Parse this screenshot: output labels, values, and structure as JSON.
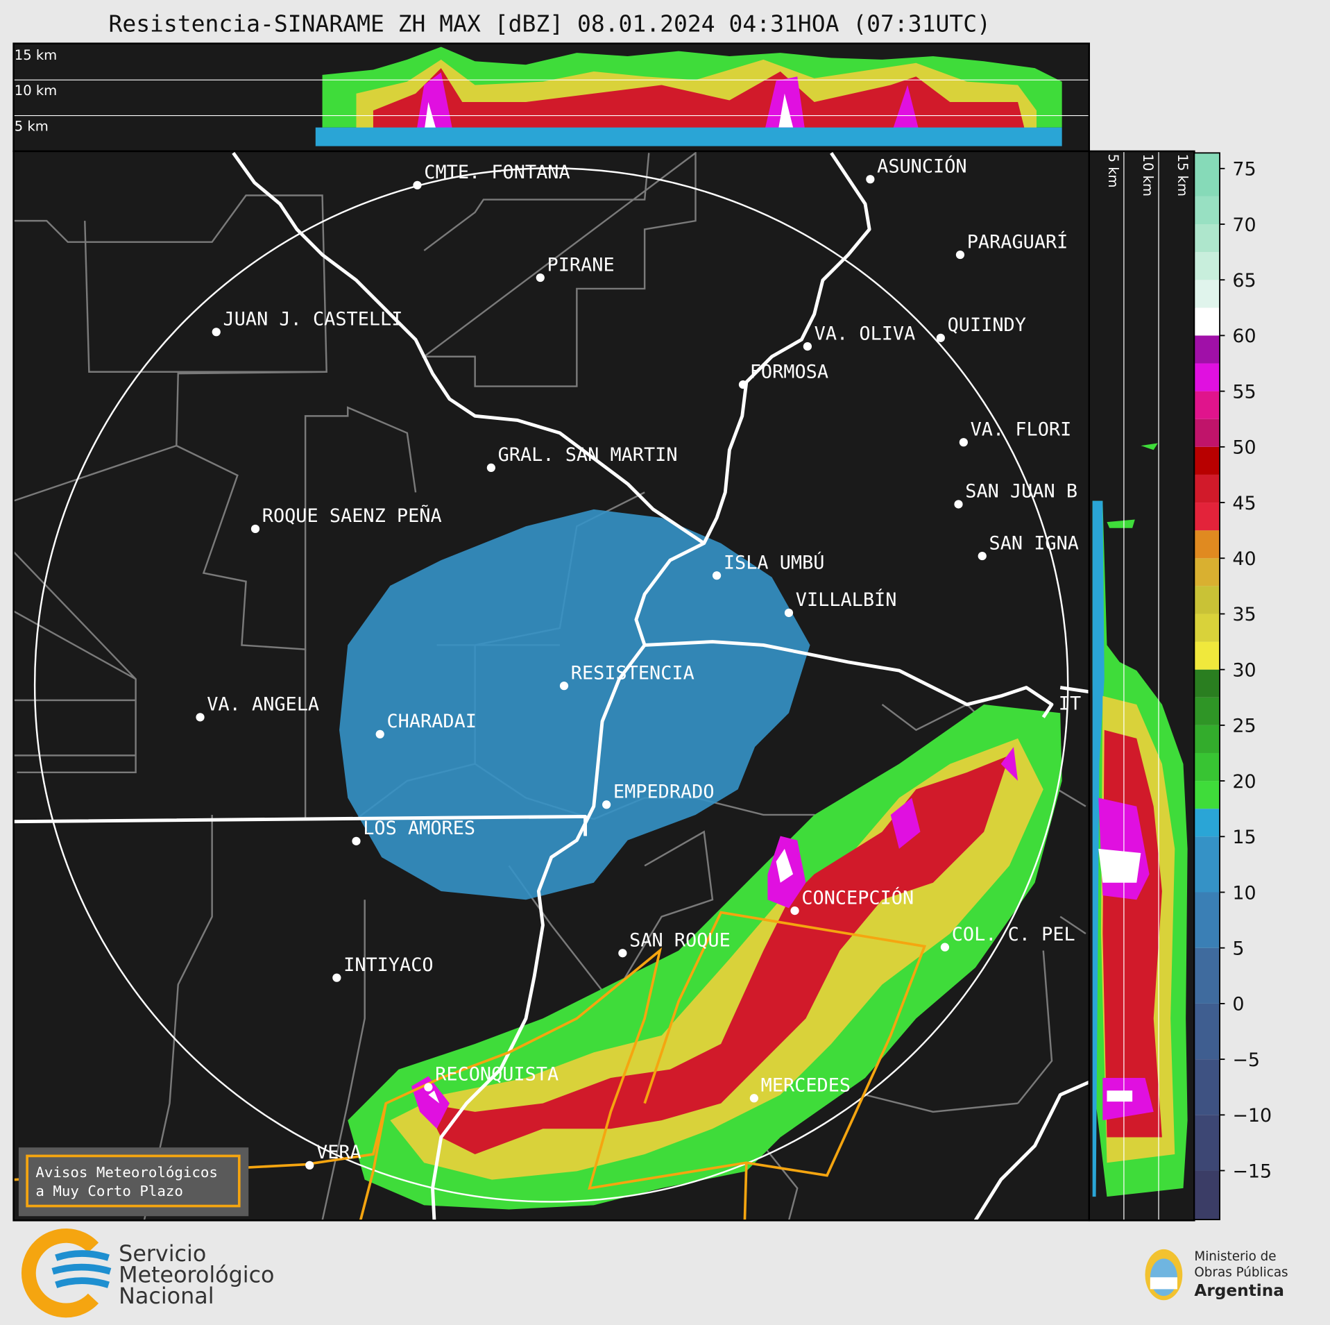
{
  "header": {
    "title": "Resistencia-SINARAME ZH MAX [dBZ] 08.01.2024 04:31HOA (07:31UTC)"
  },
  "top_panel": {
    "height_labels": [
      "15 km",
      "10 km",
      "5 km"
    ]
  },
  "side_panel": {
    "height_labels": [
      "5 km",
      "10 km",
      "15 km"
    ]
  },
  "map": {
    "places": [
      {
        "label": "CMTE. FONTANA"
      },
      {
        "label": "PIRANE"
      },
      {
        "label": "JUAN J. CASTELLI"
      },
      {
        "label": "ASUNCIÓN"
      },
      {
        "label": "PARAGUARÍ"
      },
      {
        "label": "QUIINDY"
      },
      {
        "label": "VA. OLIVA"
      },
      {
        "label": "FORMOSA"
      },
      {
        "label": "VA. FLORI"
      },
      {
        "label": "GRAL. SAN MARTIN"
      },
      {
        "label": "SAN JUAN B"
      },
      {
        "label": "ROQUE SAENZ PEÑA"
      },
      {
        "label": "SAN IGNA"
      },
      {
        "label": "ISLA UMBÚ"
      },
      {
        "label": "VILLALBÍN"
      },
      {
        "label": "RESISTENCIA"
      },
      {
        "label": "VA. ANGELA"
      },
      {
        "label": "CHARADAI"
      },
      {
        "label": "IT"
      },
      {
        "label": "EMPEDRADO"
      },
      {
        "label": "LOS AMORES"
      },
      {
        "label": "CONCEPCIÓN"
      },
      {
        "label": "COL. C. PEL"
      },
      {
        "label": "SAN ROQUE"
      },
      {
        "label": "INTIYACO"
      },
      {
        "label": "RECONQUISTA"
      },
      {
        "label": "MERCEDES"
      },
      {
        "label": "VERA"
      }
    ]
  },
  "colorbar": {
    "lim": [
      -19.4,
      76.4
    ],
    "ticks": [
      75,
      70,
      65,
      60,
      55,
      50,
      45,
      40,
      35,
      30,
      25,
      20,
      15,
      10,
      5,
      0,
      {
        "value": -5,
        "label": "−5"
      },
      {
        "value": -10,
        "label": "−10"
      },
      {
        "value": -15,
        "label": "−15"
      }
    ],
    "bands": [
      {
        "from": -19.4,
        "color": "#3b3d66"
      },
      {
        "from": -15,
        "color": "#3d4774"
      },
      {
        "from": -10,
        "color": "#3e5282"
      },
      {
        "from": -5,
        "color": "#3f5e90"
      },
      {
        "from": 0,
        "color": "#3f6b9e"
      },
      {
        "from": 5,
        "color": "#3a7fb5"
      },
      {
        "from": 10,
        "color": "#3592c6"
      },
      {
        "from": 15,
        "color": "#2aa5d6"
      },
      {
        "from": 17.5,
        "color": "#3fdc3a"
      },
      {
        "from": 20,
        "color": "#38c433"
      },
      {
        "from": 22.5,
        "color": "#33ac2c"
      },
      {
        "from": 25,
        "color": "#2f9526"
      },
      {
        "from": 27.5,
        "color": "#2a7e20"
      },
      {
        "from": 30,
        "color": "#f0e83c"
      },
      {
        "from": 32.5,
        "color": "#d9d23a"
      },
      {
        "from": 35,
        "color": "#c9c236"
      },
      {
        "from": 37.5,
        "color": "#d9b030"
      },
      {
        "from": 40,
        "color": "#e08a20"
      },
      {
        "from": 42.5,
        "color": "#e3233a"
      },
      {
        "from": 45,
        "color": "#d11a2a"
      },
      {
        "from": 47.5,
        "color": "#b80000"
      },
      {
        "from": 50,
        "color": "#c0146a"
      },
      {
        "from": 52.5,
        "color": "#e0148c"
      },
      {
        "from": 55,
        "color": "#e010e0"
      },
      {
        "from": 57.5,
        "color": "#a010a8"
      },
      {
        "from": 60,
        "color": "#ffffff"
      },
      {
        "from": 62.5,
        "color": "#e0f4ec"
      },
      {
        "from": 65,
        "color": "#c8eedc"
      },
      {
        "from": 67.5,
        "color": "#aee6cc"
      },
      {
        "from": 70,
        "color": "#98e0c2"
      },
      {
        "from": 72.5,
        "color": "#86dab8"
      }
    ]
  },
  "warning_box": {
    "lines": [
      "Avisos Meteorológicos",
      "a Muy Corto Plazo"
    ]
  },
  "footer": {
    "smn": [
      "Servicio",
      "Meteorológico",
      "Nacional"
    ],
    "ministry": [
      "Ministerio de",
      "Obras Públicas",
      "Argentina"
    ]
  }
}
